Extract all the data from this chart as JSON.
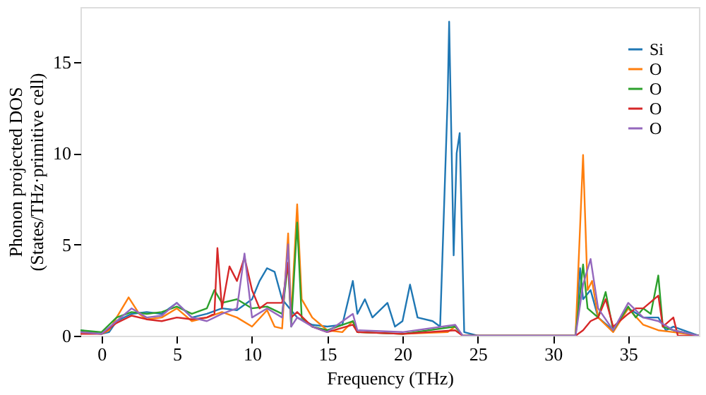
{
  "chart_data": {
    "type": "line",
    "xlabel": "Frequency (THz)",
    "ylabel": "Phonon projected DOS\n(States/THz·primitive cell)",
    "xlim": [
      -1.4,
      39.7
    ],
    "ylim": [
      0,
      18
    ],
    "xticks": [
      0,
      5,
      10,
      15,
      20,
      25,
      30,
      35
    ],
    "yticks": [
      0,
      5,
      10,
      15
    ],
    "grid": false,
    "legend": "top right",
    "series": [
      {
        "name": "Si",
        "color": "#1f77b4",
        "x": [
          -1.4,
          0,
          0.5,
          1,
          2,
          3,
          4,
          5,
          6,
          7,
          8,
          9,
          10,
          10.5,
          11,
          11.5,
          12,
          12.5,
          13,
          14,
          15,
          16,
          16.7,
          17,
          17.5,
          18,
          19,
          19.5,
          20,
          20.5,
          21,
          22,
          22.5,
          23,
          23.1,
          23.4,
          23.6,
          23.8,
          24.1,
          25,
          31.5,
          31.8,
          32,
          32.5,
          33,
          34,
          35,
          36,
          37,
          37.5,
          38,
          39.7
        ],
        "values": [
          0.3,
          0.1,
          0.2,
          0.8,
          1.2,
          1.3,
          1.2,
          1.8,
          1.0,
          1.2,
          1.5,
          1.4,
          2.0,
          3.0,
          3.7,
          3.5,
          2.0,
          1.5,
          1.0,
          0.6,
          0.5,
          0.6,
          3.0,
          1.2,
          2.0,
          1.0,
          1.8,
          0.5,
          0.8,
          2.8,
          1.0,
          0.8,
          0.5,
          13,
          17.2,
          4.4,
          10,
          11.1,
          0.2,
          0,
          0,
          3.7,
          2.0,
          2.5,
          1.0,
          0.3,
          1.5,
          1.0,
          1.0,
          0.3,
          0.5,
          0
        ]
      },
      {
        "name": "O",
        "color": "#ff7f0e",
        "x": [
          -1.4,
          0,
          0.5,
          1,
          1.8,
          2.5,
          3,
          4,
          5,
          6,
          7,
          8,
          9,
          10,
          11,
          11.5,
          12,
          12.4,
          12.6,
          13,
          13.3,
          14,
          15,
          16,
          16.7,
          17,
          20,
          23,
          23.5,
          24,
          31.5,
          32,
          32.3,
          32.6,
          33,
          34,
          35,
          36,
          37,
          38,
          39.7
        ],
        "values": [
          0.2,
          0.1,
          0.3,
          1.0,
          2.1,
          1.2,
          0.9,
          1.0,
          1.5,
          0.8,
          1.0,
          1.3,
          1.0,
          0.5,
          1.4,
          0.5,
          0.4,
          5.6,
          1.0,
          7.2,
          2.0,
          1.0,
          0.3,
          0.2,
          0.8,
          0.2,
          0.1,
          0.2,
          0.5,
          0,
          0,
          9.9,
          2.5,
          3.0,
          1.0,
          0.2,
          1.5,
          0.6,
          0.3,
          0.2,
          0
        ]
      },
      {
        "name": "O",
        "color": "#2ca02c",
        "x": [
          -1.4,
          0,
          1,
          2,
          3,
          4,
          5,
          6,
          7,
          7.5,
          8,
          9,
          10,
          11,
          12,
          12.4,
          12.6,
          13,
          13.3,
          14,
          15,
          16.7,
          17,
          20,
          23.5,
          24,
          31.5,
          32,
          32.3,
          33,
          33.5,
          34,
          35,
          35.5,
          36,
          36.5,
          37,
          37.3,
          38,
          39.7
        ],
        "values": [
          0.3,
          0.2,
          1.0,
          1.3,
          1.2,
          1.3,
          1.6,
          1.2,
          1.5,
          2.5,
          1.8,
          2.0,
          1.5,
          1.6,
          1.2,
          4.0,
          0.5,
          6.2,
          1.0,
          0.5,
          0.3,
          0.8,
          0.2,
          0.1,
          0.5,
          0,
          0,
          3.9,
          1.5,
          1.0,
          2.4,
          0.3,
          1.6,
          1.0,
          1.5,
          1.2,
          3.3,
          0.5,
          0.3,
          0
        ]
      },
      {
        "name": "O",
        "color": "#d62728",
        "x": [
          -1.4,
          0,
          1,
          2,
          3,
          4,
          5,
          6,
          7,
          7.5,
          7.7,
          8,
          8.5,
          9,
          9.5,
          10,
          10.5,
          11,
          12,
          12.4,
          12.6,
          13,
          14,
          15,
          16.7,
          17,
          20,
          23.5,
          24,
          31.5,
          32,
          32.5,
          33,
          33.5,
          34,
          35,
          35.5,
          36,
          37,
          37.3,
          38,
          38.3,
          39.7
        ],
        "values": [
          0.1,
          0.1,
          0.7,
          1.1,
          0.9,
          0.8,
          1.0,
          0.9,
          1.0,
          1.2,
          4.8,
          1.5,
          3.8,
          3.0,
          4.3,
          2.5,
          1.5,
          1.8,
          1.8,
          4.0,
          1.0,
          1.3,
          0.5,
          0.2,
          0.6,
          0.2,
          0.1,
          0.3,
          0,
          0,
          0.3,
          0.8,
          1.0,
          2.0,
          0.5,
          1.2,
          1.5,
          1.5,
          2.2,
          0.5,
          1.0,
          0,
          0
        ]
      },
      {
        "name": "O",
        "color": "#9467bd",
        "x": [
          -1.4,
          0,
          1,
          2,
          3,
          4,
          5,
          6,
          7,
          7.5,
          8,
          9,
          9.5,
          10,
          11,
          12,
          12.4,
          12.6,
          13,
          14,
          15,
          16.7,
          17,
          20,
          23.5,
          24,
          31.5,
          32,
          32.5,
          33,
          34,
          35,
          36,
          37,
          38,
          39.7
        ],
        "values": [
          0.2,
          0.1,
          0.8,
          1.5,
          1.0,
          1.1,
          1.8,
          1.0,
          0.8,
          1.0,
          1.2,
          1.5,
          4.5,
          1.0,
          1.5,
          1.0,
          5.0,
          0.5,
          1.0,
          0.5,
          0.2,
          1.2,
          0.3,
          0.2,
          0.6,
          0,
          0,
          2.8,
          4.2,
          1.5,
          0.3,
          1.8,
          1.0,
          0.8,
          0.3,
          0
        ]
      }
    ]
  }
}
